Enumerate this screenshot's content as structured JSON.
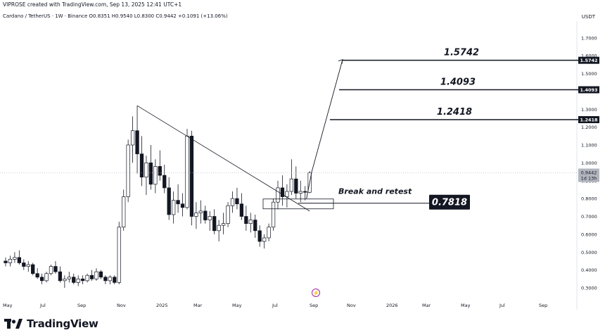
{
  "header": {
    "credit": "VIPROSE created with TradingView.com, Sep 13, 2025 12:41 UTC+1",
    "symbol_line": "Cardano / TetherUS · 1W · Binance  O0.8351  H0.9540  L0.8300  C0.9442  +0.1091 (+13.06%)",
    "currency": "USDT"
  },
  "footer": {
    "brand": "TradingView"
  },
  "colors": {
    "candle": "#131722",
    "background": "#ffffff",
    "annotation": "#131722",
    "current_price_tag": "#b2b5be"
  },
  "chart_data": {
    "type": "candlestick",
    "symbol": "Cardano / TetherUS",
    "interval": "1W",
    "exchange": "Binance",
    "ohlc_last": {
      "open": 0.8351,
      "high": 0.954,
      "low": 0.83,
      "close": 0.9442,
      "change": 0.1091,
      "change_pct": "+13.06%"
    },
    "ylim": [
      0.25,
      1.78
    ],
    "y_ticks": [
      "1.7000",
      "1.6000",
      "1.5000",
      "1.4000",
      "1.3000",
      "1.2000",
      "1.1000",
      "1.0000",
      "0.9000",
      "0.8000",
      "0.7000",
      "0.6000",
      "0.5000",
      "0.4000",
      "0.3000"
    ],
    "x_ticks": [
      "May",
      "Jul",
      "Sep",
      "Nov",
      "2025",
      "Mar",
      "May",
      "Jul",
      "Sep",
      "Nov",
      "2026",
      "Mar",
      "May",
      "Jul",
      "Sep"
    ],
    "targets": [
      {
        "label": "1.5742",
        "value": 1.5742,
        "tag": "1.5742"
      },
      {
        "label": "1.4093",
        "value": 1.4093,
        "tag": "1.4093"
      },
      {
        "label": "1.2418",
        "value": 1.2418,
        "tag": "1.2418"
      }
    ],
    "retest": {
      "label": "0.7818",
      "value": 0.7818
    },
    "current_price": {
      "value": 0.9442,
      "tag": "0.9442",
      "sub": "1d 13h"
    },
    "annotation": "Break and retest",
    "trendline": {
      "from": {
        "week": 29,
        "price": 1.32
      },
      "to": {
        "week": 67,
        "price": 0.73
      }
    },
    "candles": [
      [
        0.45,
        0.47,
        0.42,
        0.44
      ],
      [
        0.44,
        0.48,
        0.42,
        0.46
      ],
      [
        0.46,
        0.5,
        0.44,
        0.47
      ],
      [
        0.47,
        0.51,
        0.43,
        0.44
      ],
      [
        0.44,
        0.46,
        0.4,
        0.42
      ],
      [
        0.42,
        0.45,
        0.39,
        0.43
      ],
      [
        0.43,
        0.44,
        0.37,
        0.38
      ],
      [
        0.38,
        0.41,
        0.35,
        0.36
      ],
      [
        0.36,
        0.38,
        0.32,
        0.34
      ],
      [
        0.34,
        0.39,
        0.33,
        0.38
      ],
      [
        0.38,
        0.43,
        0.37,
        0.42
      ],
      [
        0.42,
        0.45,
        0.38,
        0.39
      ],
      [
        0.39,
        0.42,
        0.33,
        0.34
      ],
      [
        0.34,
        0.37,
        0.3,
        0.35
      ],
      [
        0.35,
        0.39,
        0.33,
        0.36
      ],
      [
        0.36,
        0.38,
        0.32,
        0.33
      ],
      [
        0.33,
        0.37,
        0.31,
        0.35
      ],
      [
        0.35,
        0.37,
        0.32,
        0.34
      ],
      [
        0.34,
        0.38,
        0.33,
        0.37
      ],
      [
        0.37,
        0.4,
        0.34,
        0.35
      ],
      [
        0.35,
        0.41,
        0.34,
        0.39
      ],
      [
        0.39,
        0.4,
        0.35,
        0.36
      ],
      [
        0.36,
        0.37,
        0.32,
        0.34
      ],
      [
        0.34,
        0.37,
        0.32,
        0.36
      ],
      [
        0.36,
        0.37,
        0.32,
        0.33
      ],
      [
        0.33,
        0.67,
        0.32,
        0.64
      ],
      [
        0.64,
        0.85,
        0.62,
        0.81
      ],
      [
        0.81,
        1.13,
        0.78,
        1.1
      ],
      [
        1.1,
        1.26,
        1.0,
        1.18
      ],
      [
        1.18,
        1.32,
        0.94,
        1.05
      ],
      [
        1.05,
        1.15,
        0.87,
        0.92
      ],
      [
        0.92,
        1.04,
        0.82,
        1.0
      ],
      [
        1.0,
        1.1,
        0.85,
        0.88
      ],
      [
        0.88,
        1.02,
        0.83,
        0.98
      ],
      [
        0.98,
        1.07,
        0.9,
        0.93
      ],
      [
        0.93,
        0.99,
        0.83,
        0.86
      ],
      [
        0.86,
        0.92,
        0.68,
        0.71
      ],
      [
        0.71,
        0.84,
        0.66,
        0.79
      ],
      [
        0.79,
        0.88,
        0.72,
        0.77
      ],
      [
        0.77,
        0.83,
        0.7,
        0.75
      ],
      [
        0.75,
        1.19,
        0.74,
        1.15
      ],
      [
        1.15,
        1.18,
        0.65,
        0.7
      ],
      [
        0.7,
        0.78,
        0.63,
        0.72
      ],
      [
        0.72,
        0.79,
        0.66,
        0.73
      ],
      [
        0.73,
        0.76,
        0.66,
        0.68
      ],
      [
        0.68,
        0.73,
        0.62,
        0.7
      ],
      [
        0.7,
        0.74,
        0.6,
        0.62
      ],
      [
        0.62,
        0.68,
        0.56,
        0.65
      ],
      [
        0.65,
        0.72,
        0.6,
        0.66
      ],
      [
        0.66,
        0.78,
        0.64,
        0.76
      ],
      [
        0.76,
        0.84,
        0.72,
        0.8
      ],
      [
        0.8,
        0.86,
        0.74,
        0.77
      ],
      [
        0.77,
        0.83,
        0.68,
        0.7
      ],
      [
        0.7,
        0.76,
        0.62,
        0.66
      ],
      [
        0.66,
        0.72,
        0.61,
        0.68
      ],
      [
        0.68,
        0.71,
        0.58,
        0.62
      ],
      [
        0.62,
        0.65,
        0.53,
        0.56
      ],
      [
        0.56,
        0.6,
        0.52,
        0.58
      ],
      [
        0.58,
        0.66,
        0.56,
        0.64
      ],
      [
        0.64,
        0.8,
        0.62,
        0.78
      ],
      [
        0.78,
        0.9,
        0.74,
        0.86
      ],
      [
        0.86,
        0.93,
        0.76,
        0.81
      ],
      [
        0.81,
        0.88,
        0.75,
        0.84
      ],
      [
        0.84,
        1.02,
        0.82,
        0.91
      ],
      [
        0.91,
        0.98,
        0.8,
        0.83
      ],
      [
        0.83,
        0.9,
        0.78,
        0.84
      ],
      [
        0.84,
        0.87,
        0.79,
        0.8351
      ],
      [
        0.8351,
        0.954,
        0.83,
        0.9442
      ]
    ]
  }
}
